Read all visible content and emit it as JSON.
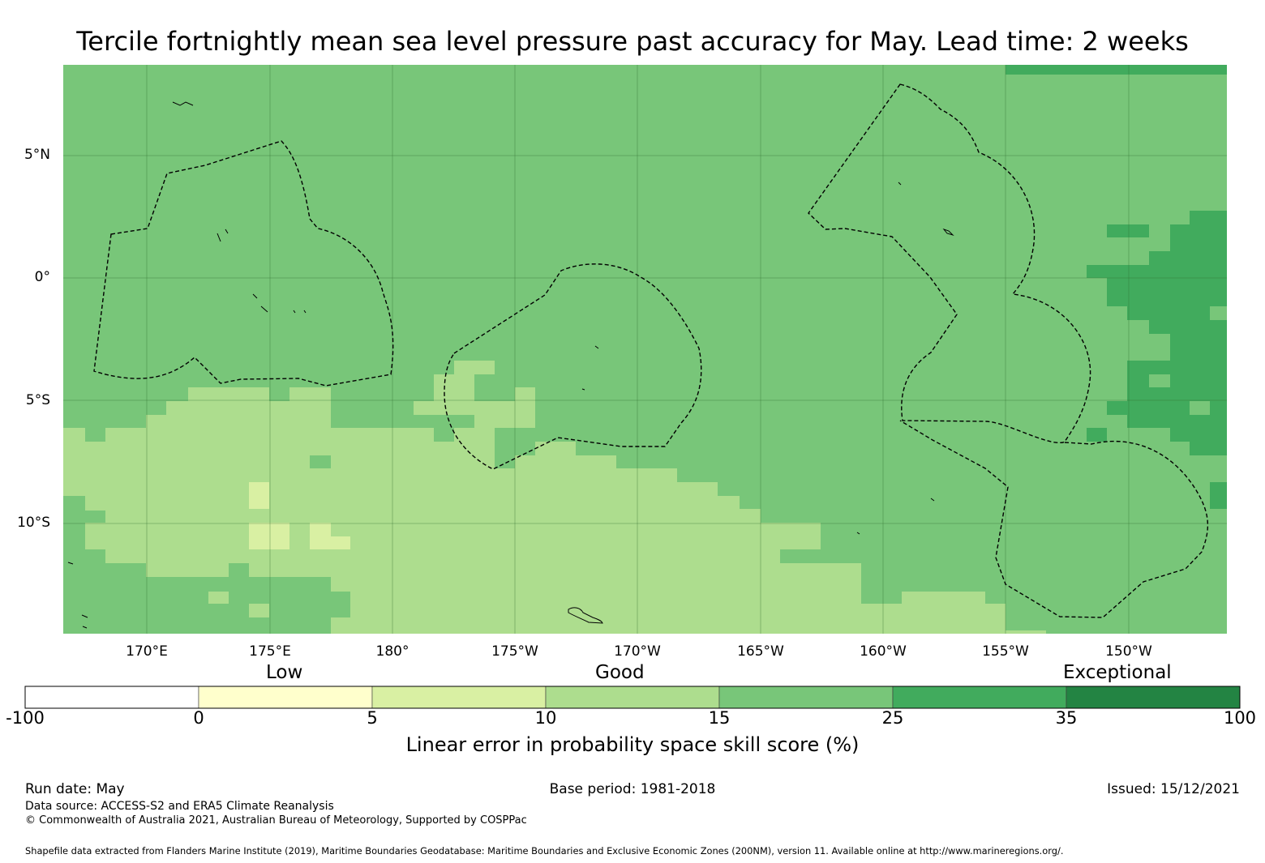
{
  "title": "Tercile fortnightly mean sea level pressure past accuracy for May. Lead time: 2 weeks",
  "map": {
    "lon_labels": [
      "170°E",
      "175°E",
      "180°",
      "175°W",
      "170°W",
      "165°W",
      "160°W",
      "155°W",
      "150°W"
    ],
    "lat_labels": [
      "5°N",
      "0°",
      "5°S",
      "10°S"
    ],
    "colors": {
      "ocean_base": "#78c679",
      "band_10_15": "#addd8e",
      "band_5_10": "#d9f0a3",
      "band_25_35": "#41ab5d"
    }
  },
  "legend": {
    "categories": [
      "Low",
      "Good",
      "Exceptional"
    ],
    "ticks": [
      "-100",
      "0",
      "5",
      "10",
      "15",
      "25",
      "35",
      "100"
    ],
    "colors": [
      "#ffffff",
      "#ffffcc",
      "#d9f0a3",
      "#addd8e",
      "#78c679",
      "#41ab5d",
      "#238443"
    ],
    "label": "Linear error in probability space skill score (%)"
  },
  "footer": {
    "run_date": "Run date: May",
    "base_period": "Base period: 1981-2018",
    "issued": "Issued: 15/12/2021",
    "data_source": "Data source: ACCESS-S2 and ERA5 Climate Reanalysis",
    "copyright": "© Commonwealth of Australia 2021, Australian Bureau of Meteorology, Supported by COSPPac",
    "shapefile": "Shapefile data extracted from Flanders Marine Institute (2019), Maritime Boundaries Geodatabase: Maritime Boundaries and Exclusive Economic Zones (200NM), version 11. Available online at http://www.marineregions.org/."
  }
}
